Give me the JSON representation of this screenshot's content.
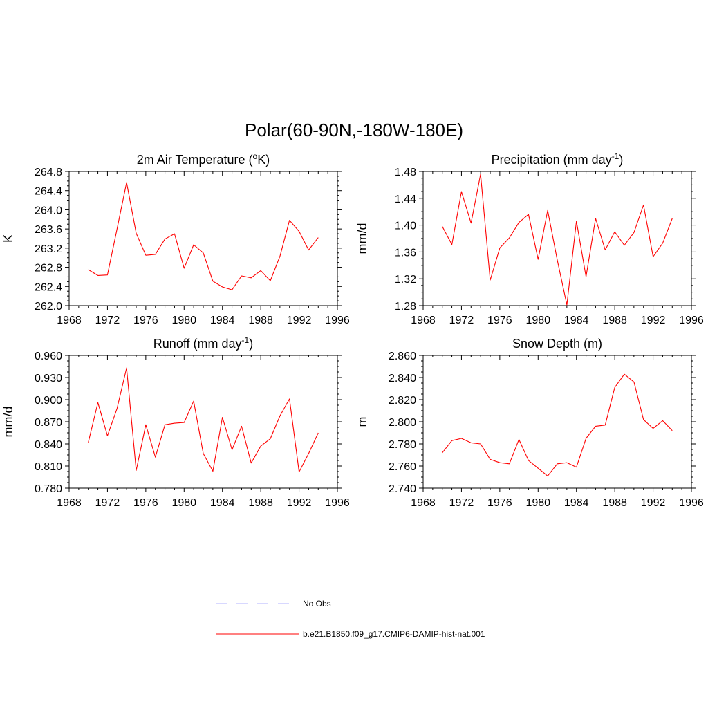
{
  "title": "Polar(60-90N,-180W-180E)",
  "colors": {
    "model": "#ff0000",
    "obs": "#b0b0ff",
    "axis": "#000000"
  },
  "legend": {
    "placement": "bottom-center",
    "entries": [
      {
        "label": "No Obs",
        "style": "dashed",
        "color": "#b0b0ff"
      },
      {
        "label": "b.e21.B1850.f09_g17.CMIP6-DAMIP-hist-nat.001",
        "style": "solid",
        "color": "#ff0000"
      }
    ]
  },
  "chart_data": [
    {
      "type": "line",
      "title": "2m Air Temperature (",
      "title_sup": "o",
      "title_after": "K)",
      "ylabel": "K",
      "xlabel": "",
      "xlim": [
        1968,
        1996
      ],
      "ylim": [
        262.0,
        264.8
      ],
      "xticks": [
        "1968",
        "1972",
        "1976",
        "1980",
        "1984",
        "1988",
        "1992",
        "1996"
      ],
      "yticks": [
        "262.0",
        "262.4",
        "262.8",
        "263.2",
        "263.6",
        "264.0",
        "264.4",
        "264.8"
      ],
      "grid": false,
      "x": [
        1970,
        1971,
        1972,
        1973,
        1974,
        1975,
        1976,
        1977,
        1978,
        1979,
        1980,
        1981,
        1982,
        1983,
        1984,
        1985,
        1986,
        1987,
        1988,
        1989,
        1990,
        1991,
        1992,
        1993,
        1994
      ],
      "series": [
        {
          "values": [
            262.75,
            262.63,
            262.64,
            263.6,
            264.57,
            263.51,
            263.05,
            263.07,
            263.39,
            263.5,
            262.78,
            263.27,
            263.1,
            262.51,
            262.39,
            262.33,
            262.62,
            262.58,
            262.73,
            262.52,
            263.03,
            263.78,
            263.55,
            263.16,
            263.42
          ]
        }
      ]
    },
    {
      "type": "line",
      "title": "Precipitation (mm day",
      "title_sup": "-1",
      "title_after": ")",
      "ylabel": "mm/d",
      "xlabel": "",
      "xlim": [
        1968,
        1996
      ],
      "ylim": [
        1.28,
        1.48
      ],
      "xticks": [
        "1968",
        "1972",
        "1976",
        "1980",
        "1984",
        "1988",
        "1992",
        "1996"
      ],
      "yticks": [
        "1.28",
        "1.32",
        "1.36",
        "1.40",
        "1.44",
        "1.48"
      ],
      "grid": false,
      "x": [
        1970,
        1971,
        1972,
        1973,
        1974,
        1975,
        1976,
        1977,
        1978,
        1979,
        1980,
        1981,
        1982,
        1983,
        1984,
        1985,
        1986,
        1987,
        1988,
        1989,
        1990,
        1991,
        1992,
        1993,
        1994
      ],
      "series": [
        {
          "values": [
            1.398,
            1.371,
            1.45,
            1.403,
            1.476,
            1.318,
            1.366,
            1.381,
            1.404,
            1.416,
            1.349,
            1.422,
            1.348,
            1.281,
            1.406,
            1.323,
            1.41,
            1.363,
            1.39,
            1.37,
            1.389,
            1.43,
            1.353,
            1.373,
            1.41
          ]
        }
      ]
    },
    {
      "type": "line",
      "title": "Runoff (mm day",
      "title_sup": "-1",
      "title_after": ")",
      "ylabel": "mm/d",
      "xlabel": "",
      "xlim": [
        1968,
        1996
      ],
      "ylim": [
        0.78,
        0.96
      ],
      "xticks": [
        "1968",
        "1972",
        "1976",
        "1980",
        "1984",
        "1988",
        "1992",
        "1996"
      ],
      "yticks": [
        "0.780",
        "0.810",
        "0.840",
        "0.870",
        "0.900",
        "0.930",
        "0.960"
      ],
      "grid": false,
      "x": [
        1970,
        1971,
        1972,
        1973,
        1974,
        1975,
        1976,
        1977,
        1978,
        1979,
        1980,
        1981,
        1982,
        1983,
        1984,
        1985,
        1986,
        1987,
        1988,
        1989,
        1990,
        1991,
        1992,
        1993,
        1994
      ],
      "series": [
        {
          "values": [
            0.842,
            0.896,
            0.851,
            0.888,
            0.943,
            0.804,
            0.866,
            0.822,
            0.866,
            0.868,
            0.869,
            0.898,
            0.827,
            0.803,
            0.876,
            0.832,
            0.864,
            0.814,
            0.837,
            0.847,
            0.878,
            0.901,
            0.802,
            0.827,
            0.855
          ]
        }
      ]
    },
    {
      "type": "line",
      "title": "Snow Depth (m)",
      "title_sup": "",
      "title_after": "",
      "ylabel": "m",
      "xlabel": "",
      "xlim": [
        1968,
        1996
      ],
      "ylim": [
        2.74,
        2.86
      ],
      "xticks": [
        "1968",
        "1972",
        "1976",
        "1980",
        "1984",
        "1988",
        "1992",
        "1996"
      ],
      "yticks": [
        "2.740",
        "2.760",
        "2.780",
        "2.800",
        "2.820",
        "2.840",
        "2.860"
      ],
      "grid": false,
      "x": [
        1970,
        1971,
        1972,
        1973,
        1974,
        1975,
        1976,
        1977,
        1978,
        1979,
        1980,
        1981,
        1982,
        1983,
        1984,
        1985,
        1986,
        1987,
        1988,
        1989,
        1990,
        1991,
        1992,
        1993,
        1994
      ],
      "series": [
        {
          "values": [
            2.772,
            2.783,
            2.785,
            2.781,
            2.78,
            2.766,
            2.763,
            2.762,
            2.784,
            2.765,
            2.758,
            2.751,
            2.762,
            2.763,
            2.759,
            2.785,
            2.796,
            2.797,
            2.831,
            2.843,
            2.836,
            2.802,
            2.794,
            2.801,
            2.792
          ]
        }
      ]
    }
  ]
}
